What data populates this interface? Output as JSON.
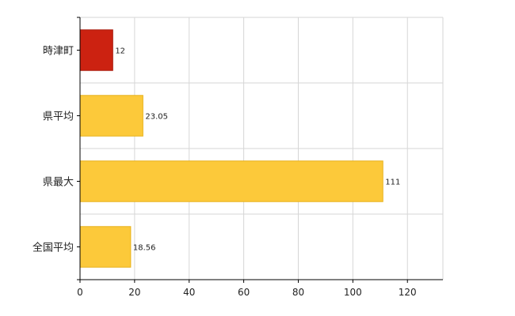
{
  "chart_data": {
    "type": "bar",
    "orientation": "horizontal",
    "categories": [
      "時津町",
      "県平均",
      "県最大",
      "全国平均"
    ],
    "values": [
      12,
      23.05,
      111,
      18.56
    ],
    "value_labels": [
      "12",
      "23.05",
      "111",
      "18.56"
    ],
    "bar_colors": [
      "#cc2211",
      "#fcc93a",
      "#fcc93a",
      "#fcc93a"
    ],
    "bar_stroke": "#e8b21c",
    "xlim": [
      0,
      133
    ],
    "xticks": [
      0,
      20,
      40,
      60,
      80,
      100,
      120
    ],
    "grid": true,
    "legend": false,
    "title": "",
    "xlabel": "",
    "ylabel": ""
  }
}
